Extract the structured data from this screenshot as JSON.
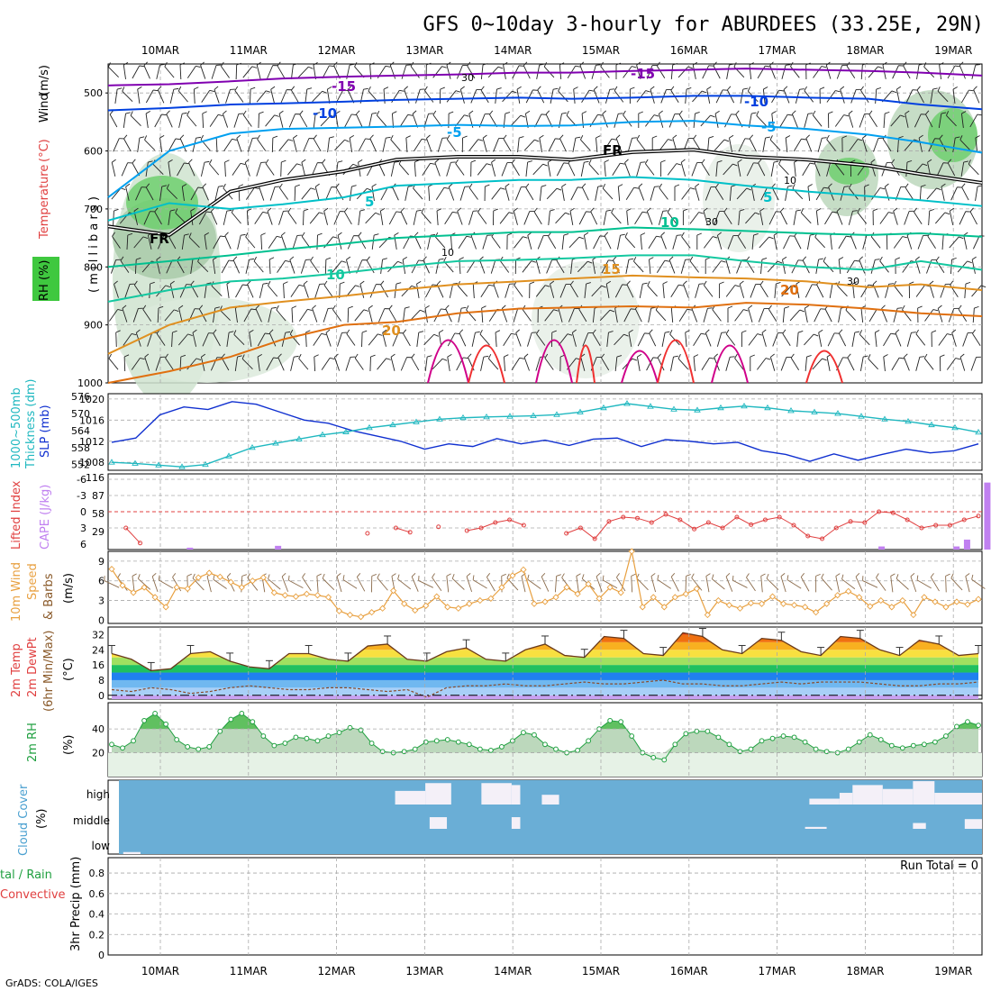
{
  "title": "GFS 0~10day 3-hourly for ABURDEES (33.25E, 29N)",
  "footer": "GrADS: COLA/IGES",
  "dates": [
    "10MAR",
    "11MAR",
    "12MAR",
    "13MAR",
    "14MAR",
    "15MAR",
    "16MAR",
    "17MAR",
    "18MAR",
    "19MAR"
  ],
  "panel_labels": {
    "upper": {
      "rh": "RH (%)",
      "temperature": "Temperature",
      "temp_unit": "(°C)",
      "wind": "Wind",
      "wind_unit": "(m/s)",
      "axis": "( m i l l i b a r s )"
    },
    "pressure": {
      "thickness": "1000~500mb",
      "thickness2": "Thickness (dm)",
      "slp": "SLP (mb)"
    },
    "instability": {
      "lifted": "Lifted Index",
      "cape": "CAPE (J/kg)"
    },
    "wind10m": {
      "line1": "10m Wind",
      "line2": "Speed",
      "line3": "& Barbs",
      "unit": "(m/s)"
    },
    "temp2m": {
      "line1": "2m Temp",
      "line2": "2m DewPt",
      "line3": "(6hr Min/Max)",
      "unit": "(°C)"
    },
    "rh2m": {
      "line1": "2m RH",
      "unit": "(%)"
    },
    "cloud": {
      "line1": "Cloud Cover",
      "unit": "(%)"
    },
    "precip": {
      "line1": "tal / Rain",
      "line2": "Convective",
      "line3": "3hr Precip (mm)"
    }
  },
  "contour_labels": {
    "minus15": "-15",
    "minus10": "-10",
    "minus5": "-5",
    "plus5": "5",
    "plus10": "10",
    "plus15": "15",
    "plus20": "20",
    "freezing": "FR",
    "rh30": "30",
    "rh10": "10"
  },
  "cloud_levels": [
    "high",
    "middle",
    "low"
  ],
  "precip_note": "Run Total = 0",
  "colors": {
    "purple": "#8000b0",
    "blue": "#0040e0",
    "lightblue": "#00a0f0",
    "cyan": "#00c0c8",
    "green": "#00c090",
    "teal": "#14c8a0",
    "orange": "#e09020",
    "darkorange": "#e07010",
    "red": "#f03030",
    "magenta": "#d0008a",
    "slp": "#1030d0",
    "thickness": "#20b8c0",
    "lifted": "#e04040",
    "cape": "#c080f0",
    "wind": "#e8a040",
    "cloudbg": "#6aaed6",
    "cloudfill": "#f4f0f8"
  },
  "chart_data": [
    {
      "type": "contour",
      "name": "upper",
      "y_axis": {
        "ticks": [
          500,
          600,
          700,
          800,
          900,
          1000
        ],
        "ylim": [
          1000,
          450
        ],
        "unit": "millibars"
      },
      "series": [
        {
          "name": "-15",
          "color": "purple",
          "values": [
            487,
            485,
            480,
            475,
            472,
            470,
            468,
            465,
            465,
            462,
            460,
            458,
            460,
            462,
            465,
            470
          ]
        },
        {
          "name": "-10",
          "color": "blue",
          "values": [
            530,
            526,
            520,
            518,
            515,
            512,
            510,
            508,
            510,
            508,
            505,
            505,
            508,
            510,
            520,
            528
          ]
        },
        {
          "name": "-5",
          "color": "lightblue",
          "values": [
            680,
            600,
            570,
            562,
            560,
            558,
            555,
            557,
            556,
            550,
            548,
            556,
            562,
            572,
            585,
            603
          ]
        },
        {
          "name": "FR",
          "color": "black",
          "values": [
            730,
            745,
            670,
            650,
            635,
            615,
            610,
            610,
            615,
            602,
            598,
            610,
            615,
            625,
            640,
            655
          ]
        },
        {
          "name": "5",
          "color": "cyan",
          "values": [
            720,
            690,
            700,
            692,
            680,
            660,
            655,
            650,
            650,
            645,
            650,
            660,
            670,
            678,
            685,
            695
          ]
        },
        {
          "name": "10",
          "color": "green",
          "values": [
            800,
            790,
            780,
            770,
            760,
            750,
            745,
            740,
            740,
            732,
            735,
            738,
            742,
            745,
            742,
            748
          ]
        },
        {
          "name": "10",
          "color": "teal",
          "values": [
            860,
            840,
            825,
            820,
            810,
            800,
            790,
            788,
            785,
            780,
            780,
            790,
            800,
            805,
            790,
            805
          ]
        },
        {
          "name": "15",
          "color": "orange",
          "values": [
            950,
            900,
            870,
            860,
            850,
            840,
            830,
            825,
            820,
            815,
            818,
            820,
            825,
            835,
            830,
            840
          ]
        },
        {
          "name": "20",
          "color": "darkorange",
          "values": [
            1000,
            980,
            955,
            925,
            900,
            895,
            880,
            872,
            870,
            868,
            870,
            862,
            865,
            872,
            880,
            885
          ]
        }
      ],
      "x": [
        0,
        0.07,
        0.14,
        0.2,
        0.27,
        0.33,
        0.4,
        0.47,
        0.53,
        0.6,
        0.67,
        0.73,
        0.8,
        0.87,
        0.93,
        1
      ]
    },
    {
      "type": "line",
      "name": "pressure",
      "y_left": {
        "ticks": [
          552,
          558,
          564,
          570,
          576
        ],
        "label": "Thickness (dm)"
      },
      "y_right": {
        "ticks": [
          1008,
          1012,
          1016,
          1020
        ],
        "label": "SLP (mb)"
      },
      "series": [
        {
          "name": "SLP",
          "axis": "right",
          "values": [
            1011.8,
            1012.6,
            1017.0,
            1018.5,
            1018.0,
            1019.5,
            1019.0,
            1017.5,
            1016.0,
            1015.4,
            1014.0,
            1013.0,
            1012.0,
            1010.5,
            1011.5,
            1011.0,
            1012.5,
            1011.5,
            1012.2,
            1011.2,
            1012.4,
            1012.6,
            1011.0,
            1012.3,
            1012.0,
            1011.5,
            1011.8,
            1010.2,
            1009.5,
            1008.2,
            1009.6,
            1008.4,
            1009.5,
            1010.5,
            1009.8,
            1010.2,
            1011.5
          ]
        },
        {
          "name": "Thickness",
          "axis": "left",
          "values": [
            552.8,
            552.4,
            551.8,
            551.2,
            552.0,
            555.0,
            558.0,
            559.5,
            561.0,
            562.5,
            563.5,
            565.0,
            566.0,
            567.0,
            568.0,
            568.5,
            568.8,
            569.0,
            569.2,
            569.6,
            570.5,
            572.0,
            573.5,
            572.5,
            571.5,
            571.2,
            572.0,
            572.6,
            572.0,
            571.0,
            570.5,
            570.0,
            569.0,
            568.0,
            567.2,
            566.0,
            565.0,
            563.4
          ]
        }
      ],
      "x_count_note": "series sampled evenly across the 10-day span"
    },
    {
      "type": "bar",
      "name": "instability",
      "y_left": {
        "ticks": [
          -6,
          -3,
          0,
          3,
          6
        ],
        "label": "Lifted Index"
      },
      "y_right": {
        "ticks": [
          29,
          58,
          87,
          116
        ],
        "label": "CAPE (J/kg)"
      },
      "series": [
        {
          "name": "Lifted Index",
          "values": [
            null,
            3.0,
            5.8,
            null,
            null,
            null,
            null,
            null,
            null,
            null,
            null,
            null,
            null,
            null,
            null,
            null,
            null,
            null,
            4.0,
            null,
            3.0,
            3.8,
            null,
            2.8,
            null,
            3.5,
            3.0,
            2.0,
            1.5,
            2.5,
            null,
            null,
            4.0,
            3.0,
            5.0,
            1.8,
            1.0,
            1.2,
            2.0,
            0.5,
            1.5,
            3.2,
            2.0,
            3.0,
            1.0,
            2.4,
            1.5,
            1.0,
            2.5,
            4.5,
            5.0,
            3.0,
            1.8,
            2.0,
            0.0,
            0.2,
            1.5,
            3.0,
            2.5,
            2.5,
            1.5,
            0.8
          ]
        },
        {
          "name": "CAPE",
          "values": [
            {
              "x": 0.3,
              "v": 3
            },
            {
              "x": 1.3,
              "v": 6
            },
            {
              "x": 9.0,
              "v": 5
            },
            {
              "x": 9.12,
              "v": 16
            },
            {
              "x": 9.35,
              "v": 108
            },
            {
              "x": 9.5,
              "v": 10
            },
            {
              "x": 8.15,
              "v": 5
            }
          ]
        }
      ]
    },
    {
      "type": "line",
      "name": "wind10m",
      "y": {
        "ticks": [
          0,
          3,
          6,
          9
        ]
      },
      "series": [
        {
          "name": "10m Wind Speed",
          "values": [
            7.8,
            5.3,
            4.2,
            5.0,
            3.5,
            2.0,
            5.0,
            4.8,
            6.5,
            7.2,
            6.6,
            5.8,
            5.0,
            6.0,
            6.5,
            4.2,
            3.8,
            3.6,
            4.0,
            3.8,
            3.5,
            1.4,
            0.8,
            0.5,
            1.2,
            1.8,
            4.5,
            2.5,
            1.5,
            2.2,
            3.6,
            2.0,
            1.8,
            2.5,
            3.0,
            3.3,
            5.0,
            6.8,
            7.7,
            2.5,
            2.8,
            3.5,
            5.0,
            4.0,
            5.5,
            3.3,
            5.0,
            4.2,
            10.5,
            2.0,
            3.5,
            2.0,
            3.5,
            4.0,
            4.8,
            0.8,
            3.0,
            2.3,
            1.8,
            2.6,
            2.5,
            3.6,
            2.5,
            2.3,
            2.0,
            1.2,
            2.5,
            3.8,
            4.4,
            3.5,
            2.1,
            3.0,
            2.0,
            3.0,
            0.8,
            3.5,
            2.8,
            2.0,
            2.8,
            2.4,
            3.2
          ]
        }
      ]
    },
    {
      "type": "area",
      "name": "temp2m",
      "y": {
        "ticks": [
          0,
          8,
          16,
          24,
          32
        ],
        "ylim": [
          -2,
          36
        ]
      },
      "series": [
        {
          "name": "2m Temp",
          "values": [
            22,
            19,
            13,
            14,
            22,
            23,
            18,
            15,
            14,
            22,
            22,
            19,
            18,
            26,
            27,
            19,
            18,
            23,
            25,
            19,
            18,
            24,
            27,
            21,
            20,
            31,
            30,
            22,
            21,
            33,
            31,
            24,
            22,
            30,
            29,
            23,
            21,
            31,
            30,
            24,
            21,
            29,
            27,
            21,
            22
          ]
        },
        {
          "name": "2m DewPt",
          "values": [
            3,
            2,
            4,
            3,
            1,
            2,
            4,
            5,
            4,
            3,
            3,
            4,
            4,
            3,
            2,
            3,
            -1,
            4,
            5,
            5,
            6,
            5,
            5,
            6,
            7,
            6,
            6,
            7,
            8,
            6,
            6,
            5,
            5,
            6,
            7,
            6,
            7,
            7,
            7,
            6,
            5,
            5,
            6,
            6,
            7
          ]
        }
      ]
    },
    {
      "type": "area",
      "name": "rh2m",
      "y": {
        "ticks": [
          20,
          40
        ]
      },
      "series": [
        {
          "name": "2m RH",
          "values": [
            27,
            24,
            30,
            47,
            53,
            44,
            31,
            25,
            23,
            25,
            38,
            48,
            53,
            46,
            34,
            26,
            28,
            33,
            32,
            30,
            34,
            37,
            41,
            39,
            28,
            21,
            20,
            21,
            23,
            29,
            30,
            31,
            29,
            27,
            23,
            22,
            25,
            30,
            37,
            35,
            27,
            23,
            20,
            22,
            30,
            40,
            47,
            46,
            34,
            20,
            16,
            14,
            27,
            36,
            38,
            38,
            33,
            27,
            21,
            23,
            30,
            32,
            34,
            33,
            29,
            23,
            21,
            20,
            23,
            29,
            35,
            31,
            26,
            24,
            26,
            27,
            29,
            34,
            42,
            46,
            43
          ]
        }
      ]
    },
    {
      "type": "bar",
      "name": "cloud",
      "categories": [
        "high",
        "middle",
        "low"
      ],
      "series": [
        {
          "name": "high",
          "blocks": [
            {
              "from": 3.2,
              "to": 3.55,
              "v": 0.35
            },
            {
              "from": 3.55,
              "to": 3.85,
              "v": 0.55
            },
            {
              "from": 4.2,
              "to": 4.55,
              "v": 0.55
            },
            {
              "from": 4.55,
              "to": 4.65,
              "v": 0.5
            },
            {
              "from": 4.9,
              "to": 5.1,
              "v": 0.25
            },
            {
              "from": 8.0,
              "to": 8.35,
              "v": 0.15
            },
            {
              "from": 8.35,
              "to": 8.5,
              "v": 0.3
            },
            {
              "from": 8.5,
              "to": 8.85,
              "v": 0.5
            },
            {
              "from": 8.85,
              "to": 9.2,
              "v": 0.4
            },
            {
              "from": 9.2,
              "to": 9.45,
              "v": 0.6
            },
            {
              "from": 9.45,
              "to": 10.0,
              "v": 0.3
            }
          ]
        },
        {
          "name": "middle",
          "blocks": [
            {
              "from": 3.6,
              "to": 3.8,
              "v": 0.3
            },
            {
              "from": 4.55,
              "to": 4.65,
              "v": 0.3
            },
            {
              "from": 7.95,
              "to": 8.2,
              "v": 0.05
            },
            {
              "from": 9.2,
              "to": 9.35,
              "v": 0.15
            },
            {
              "from": 9.8,
              "to": 10.0,
              "v": 0.25
            }
          ]
        },
        {
          "name": "low",
          "blocks": [
            {
              "from": 0.05,
              "to": 0.25,
              "v": 0.05
            }
          ]
        }
      ]
    },
    {
      "type": "bar",
      "name": "precip",
      "y": {
        "ticks": [
          0,
          0.2,
          0.4,
          0.6,
          0.8
        ]
      },
      "series": [
        {
          "name": "3hr Precip",
          "values": []
        }
      ]
    }
  ]
}
